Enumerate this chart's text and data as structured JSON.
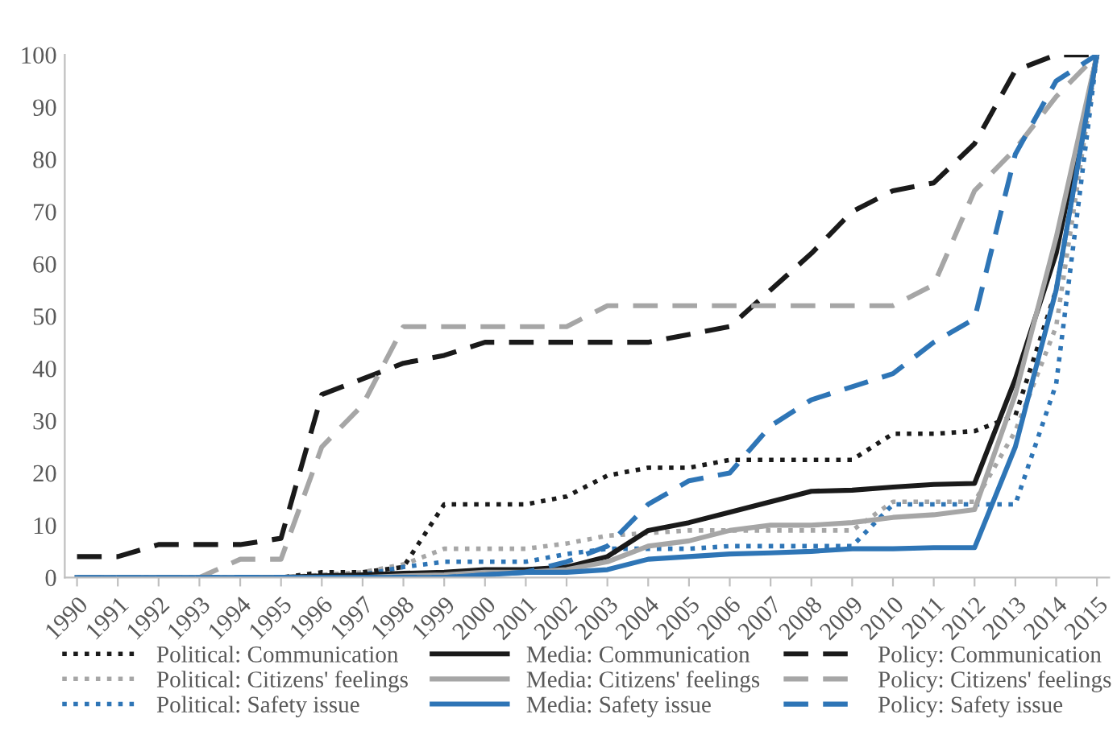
{
  "chart_data": {
    "type": "line",
    "categories": [
      "1990",
      "1991",
      "1992",
      "1993",
      "1994",
      "1995",
      "1996",
      "1997",
      "1998",
      "1999",
      "2000",
      "2001",
      "2002",
      "2003",
      "2004",
      "2005",
      "2006",
      "2007",
      "2008",
      "2009",
      "2010",
      "2011",
      "2012",
      "2013",
      "2014",
      "2015"
    ],
    "ylim": [
      0,
      100
    ],
    "yticks": [
      0,
      10,
      20,
      30,
      40,
      50,
      60,
      70,
      80,
      90,
      100
    ],
    "grid": false,
    "legend": "bottom",
    "marker": "none",
    "series": [
      {
        "name": "Political: Communication",
        "color": "#1a1a1a",
        "line_style": "dotted",
        "values": [
          null,
          null,
          null,
          null,
          0,
          0,
          1,
          1,
          2,
          14,
          14,
          14,
          15.5,
          19.5,
          21,
          21,
          22.5,
          22.5,
          22.5,
          22.5,
          27.5,
          27.5,
          28,
          31,
          55,
          100
        ]
      },
      {
        "name": "Political: Citizens' feelings",
        "color": "#a6a6a6",
        "line_style": "dotted",
        "values": [
          0,
          0,
          0,
          0,
          0,
          0,
          0.5,
          1,
          2.5,
          5.5,
          5.5,
          5.5,
          6.5,
          8,
          8.5,
          9,
          9,
          9,
          9,
          9,
          14.5,
          14.5,
          14.5,
          28,
          48,
          100
        ]
      },
      {
        "name": "Political: Safety issue",
        "color": "#2e75b6",
        "line_style": "dotted",
        "values": [
          0,
          0,
          0,
          0,
          0,
          0,
          0,
          0.5,
          2,
          3,
          3,
          3,
          4.5,
          5.5,
          5.5,
          5.5,
          6,
          6,
          6,
          6,
          14,
          14,
          14,
          14,
          37,
          100
        ]
      },
      {
        "name": "Media: Communication",
        "color": "#1a1a1a",
        "line_style": "solid",
        "values": [
          null,
          null,
          null,
          null,
          0,
          0,
          0.3,
          0.5,
          0.8,
          1,
          1.5,
          1.5,
          2,
          4,
          9,
          10.5,
          12.5,
          14.5,
          16.5,
          16.7,
          17.3,
          17.8,
          18,
          38,
          62,
          100
        ]
      },
      {
        "name": "Media: Citizens' feelings",
        "color": "#a6a6a6",
        "line_style": "solid",
        "values": [
          0,
          0,
          0,
          0,
          0,
          0,
          0,
          0,
          0.3,
          0.5,
          1,
          1,
          1.5,
          3,
          6,
          7,
          9,
          10,
          10,
          10.5,
          11.5,
          12,
          13,
          35,
          65,
          100
        ]
      },
      {
        "name": "Media: Safety issue",
        "color": "#2e75b6",
        "line_style": "solid",
        "values": [
          0,
          0,
          0,
          0,
          0,
          0,
          0,
          0,
          0,
          0,
          0.5,
          1,
          1,
          1.5,
          3.5,
          4,
          4.5,
          4.7,
          5,
          5.5,
          5.5,
          5.7,
          5.7,
          25,
          55,
          100
        ]
      },
      {
        "name": "Policy: Communication",
        "color": "#1a1a1a",
        "line_style": "dashed",
        "values": [
          4,
          4,
          6.3,
          6.3,
          6.3,
          7.5,
          35,
          38,
          41,
          42.5,
          45,
          45,
          45,
          45,
          45,
          46.5,
          48,
          55,
          62,
          70,
          74,
          75.5,
          83,
          97,
          100,
          100
        ]
      },
      {
        "name": "Policy: Citizens' feelings",
        "color": "#a6a6a6",
        "line_style": "dashed",
        "values": [
          0,
          0,
          0,
          0,
          3.5,
          3.5,
          25,
          33,
          48,
          48,
          48,
          48,
          48,
          52,
          52,
          52,
          52,
          52,
          52,
          52,
          52,
          56,
          74,
          82,
          92,
          100
        ]
      },
      {
        "name": "Policy: Safety issue",
        "color": "#2e75b6",
        "line_style": "dashed",
        "values": [
          0,
          0,
          0,
          0,
          0,
          0,
          0,
          0,
          0,
          0,
          0.5,
          1,
          3,
          6,
          14,
          18.5,
          20,
          29,
          34,
          36.5,
          39,
          45,
          49.5,
          81,
          95,
          100
        ]
      }
    ]
  }
}
